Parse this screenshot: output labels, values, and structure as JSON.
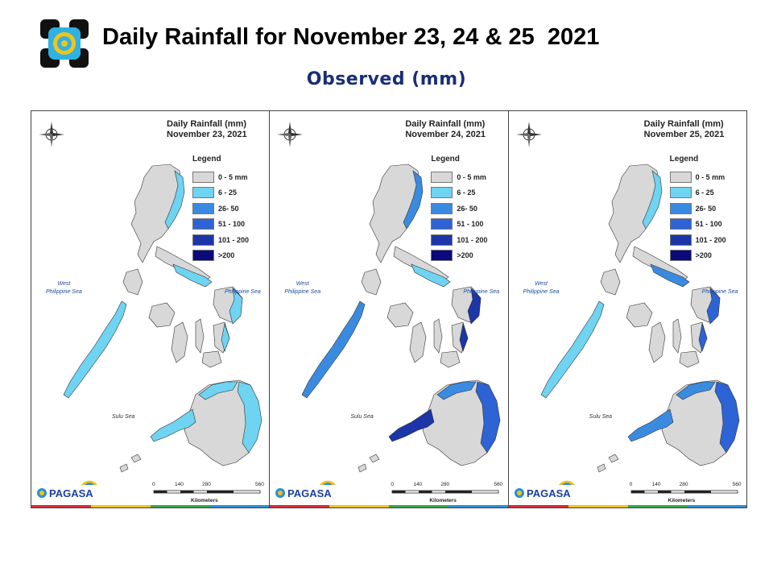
{
  "title": "Daily Rainfall for November 23, 24 & 25  2021",
  "subtitle": "Observed (mm)",
  "legend": {
    "title": "Legend",
    "items": [
      {
        "label": "0 - 5 mm",
        "color": "#d8d8d8"
      },
      {
        "label": "6 - 25",
        "color": "#6fd3f2"
      },
      {
        "label": "26- 50",
        "color": "#3a8be0"
      },
      {
        "label": "51 - 100",
        "color": "#2d63d4"
      },
      {
        "label": "101 - 200",
        "color": "#1c35a8"
      },
      {
        "label": ">200",
        "color": "#0a0a7a"
      }
    ]
  },
  "labels": {
    "west_sea": "West\nPhilippine Sea",
    "east_sea": "Philippine Sea",
    "south_sea": "Sulu Sea",
    "scale_ticks": [
      "0",
      "140",
      "280",
      "560"
    ],
    "scale_unit": "Kilometers",
    "pagasa": "PAGASA"
  },
  "panels": [
    {
      "heading": "Daily Rainfall (mm)",
      "date": "November 23, 2021",
      "rain": {
        "luzon_east": 1,
        "bicol": 1,
        "visayas_east": 1,
        "mindanao_east": 1,
        "palawan": 1,
        "mindanao_west": 1,
        "mindanao_north": 1
      }
    },
    {
      "heading": "Daily Rainfall (mm)",
      "date": "November 24, 2021",
      "rain": {
        "luzon_east": 2,
        "bicol": 1,
        "visayas_east": 4,
        "mindanao_east": 3,
        "palawan": 2,
        "mindanao_west": 4,
        "mindanao_north": 2
      }
    },
    {
      "heading": "Daily Rainfall (mm)",
      "date": "November 25, 2021",
      "rain": {
        "luzon_east": 1,
        "bicol": 2,
        "visayas_east": 3,
        "mindanao_east": 3,
        "palawan": 1,
        "mindanao_west": 2,
        "mindanao_north": 2
      }
    }
  ],
  "colors": {
    "subtitle": "#1a2d7a",
    "land": "#d8d8d8",
    "bottom_bar": [
      "#d62b3a",
      "#f0c419",
      "#3aa54a",
      "#2a8fd8"
    ]
  }
}
